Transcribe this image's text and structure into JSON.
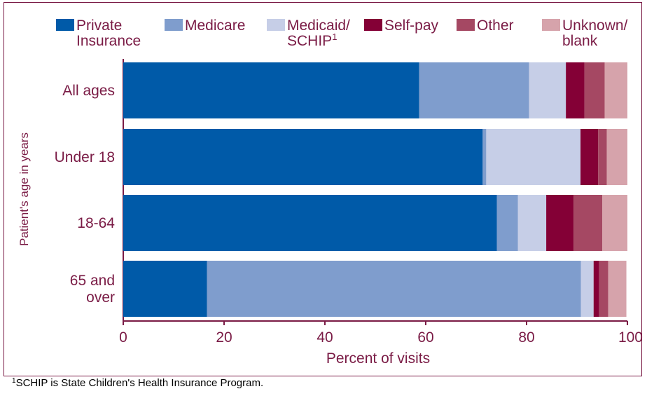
{
  "chart_data": {
    "type": "bar",
    "orientation": "horizontal",
    "stacked": true,
    "categories": [
      [
        "All ages"
      ],
      [
        "Under 18"
      ],
      [
        "18-64"
      ],
      [
        "65 and",
        "over"
      ]
    ],
    "series": [
      {
        "name": [
          "Private",
          "Insurance"
        ],
        "color": "#005aa8",
        "values": [
          58.7,
          71.3,
          74.1,
          16.6
        ]
      },
      {
        "name": [
          "Medicare"
        ],
        "color": "#7f9dcd",
        "values": [
          21.8,
          0.7,
          4.2,
          74.2
        ]
      },
      {
        "name": [
          "Medicaid/",
          "SCHIP"
        ],
        "sup": "1",
        "color": "#c6cee7",
        "values": [
          7.3,
          18.7,
          5.6,
          2.5
        ]
      },
      {
        "name": [
          "Self-pay"
        ],
        "color": "#840036",
        "values": [
          3.7,
          3.5,
          5.4,
          1.1
        ]
      },
      {
        "name": [
          "Other"
        ],
        "color": "#a54863",
        "values": [
          4.0,
          1.7,
          5.7,
          1.8
        ]
      },
      {
        "name": [
          "Unknown/",
          "blank"
        ],
        "color": "#d6a3ab",
        "values": [
          4.5,
          4.1,
          5.0,
          3.6
        ]
      }
    ],
    "xlim": [
      0,
      100
    ],
    "xticks": [
      "0",
      "20",
      "40",
      "60",
      "80",
      "100"
    ],
    "xlabel": "Percent of visits",
    "ylabel": "Patient's age in years",
    "legend_position": "top"
  },
  "footnote": {
    "marker": "1",
    "text": "SCHIP is State Children's Health Insurance Program."
  }
}
